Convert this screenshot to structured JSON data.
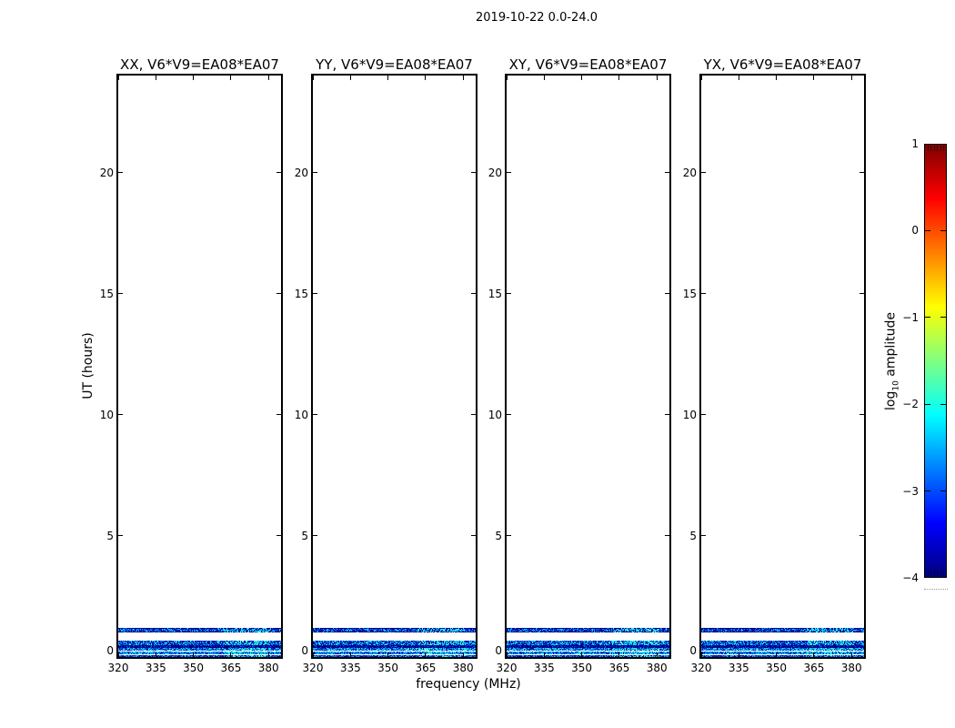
{
  "figure": {
    "suptitle": "2019-10-22 0.0-24.0",
    "background": "#ffffff"
  },
  "chart_data": {
    "type": "heatmap",
    "title": "2019-10-22 0.0-24.0",
    "xlabel": "frequency (MHz)",
    "ylabel": "UT (hours)",
    "panels": [
      {
        "pol": "XX",
        "baseline": "V6*V9=EA08*EA07",
        "title": "XX, V6*V9=EA08*EA07"
      },
      {
        "pol": "YY",
        "baseline": "V6*V9=EA08*EA07",
        "title": "YY, V6*V9=EA08*EA07"
      },
      {
        "pol": "XY",
        "baseline": "V6*V9=EA08*EA07",
        "title": "XY, V6*V9=EA08*EA07"
      },
      {
        "pol": "YX",
        "baseline": "V6*V9=EA08*EA07",
        "title": "YX, V6*V9=EA08*EA07"
      }
    ],
    "x_axis": {
      "label": "frequency (MHz)",
      "min": 320,
      "max": 385,
      "ticks": [
        320,
        335,
        350,
        365,
        380
      ]
    },
    "y_axis": {
      "label": "UT (hours)",
      "min": 0,
      "max": 24,
      "ticks": [
        0,
        5,
        10,
        15,
        20
      ]
    },
    "colorbar": {
      "label": "log10 amplitude",
      "label_parts": {
        "prefix": "log",
        "sub": "10",
        "suffix": " amplitude"
      },
      "min": -4,
      "max": 1,
      "tick_values": [
        1,
        0,
        -1,
        -2,
        -3,
        -4
      ],
      "tick_labels": [
        "1",
        "0",
        "−1",
        "−2",
        "−3",
        "−4"
      ],
      "dash_values": [
        0,
        -1,
        -2,
        -3
      ],
      "colormap": "jet",
      "gradient_stops": [
        [
          "#000080",
          0
        ],
        [
          "#0000ff",
          0.125
        ],
        [
          "#00ffff",
          0.375
        ],
        [
          "#80ff80",
          0.5
        ],
        [
          "#ffff00",
          0.625
        ],
        [
          "#ff0000",
          0.875
        ],
        [
          "#800000",
          1
        ]
      ]
    },
    "data_rows": {
      "description": "Low-amplitude speckled visibility data only near start of observation (UT 0 to ~1.2 h); rest of the 24 h panels empty (white). Same stripe pattern in all four polarization panels.",
      "stripes": [
        {
          "ut_from": 1.01,
          "ut_to": 1.2,
          "hotspot": true,
          "edge_color": "#000088",
          "palette": [
            [
              "#000099",
              0.38
            ],
            [
              "#0033cc",
              0.27
            ],
            [
              "#0099ee",
              0.2
            ],
            [
              "#00ddee",
              0.15
            ]
          ]
        },
        {
          "ut_from": 0.47,
          "ut_to": 0.66,
          "hotspot": true,
          "palette": [
            [
              "#000099",
              0.3
            ],
            [
              "#0033cc",
              0.25
            ],
            [
              "#0088ee",
              0.22
            ],
            [
              "#00ccee",
              0.13
            ],
            [
              "#33eedd",
              0.1
            ]
          ]
        },
        {
          "ut_from": 0.36,
          "ut_to": 0.47,
          "hotspot": false,
          "palette": [
            [
              "#000088",
              0.7
            ],
            [
              "#0022bb",
              0.2
            ],
            [
              "#0066dd",
              0.1
            ]
          ]
        },
        {
          "ut_from": 0.13,
          "ut_to": 0.36,
          "hotspot": true,
          "palette": [
            [
              "#0077ee",
              0.25
            ],
            [
              "#00bbee",
              0.25
            ],
            [
              "#0033cc",
              0.2
            ],
            [
              "#000099",
              0.15
            ],
            [
              "#44eecc",
              0.15
            ]
          ]
        },
        {
          "ut_from": 0.0,
          "ut_to": 0.13,
          "hotspot": true,
          "palette": [
            [
              "#0033cc",
              0.3
            ],
            [
              "#000099",
              0.3
            ],
            [
              "#0088ee",
              0.25
            ],
            [
              "#00ccee",
              0.15
            ]
          ]
        }
      ],
      "white_lines_ut": [
        0.28,
        0.13
      ],
      "hotspot": {
        "mhz_from": 362,
        "mhz_to": 381,
        "probability": 0.3,
        "colors": [
          "#33eedd",
          "#00eeff",
          "#66ffcc"
        ]
      }
    }
  }
}
